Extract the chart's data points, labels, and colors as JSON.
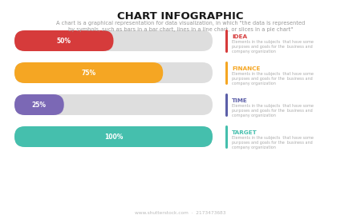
{
  "title": "CHART INFOGRAPHIC",
  "subtitle": "A chart is a graphical representation for data visualization, in which \"the data is represented\nby symbols, such as bars in a bar chart, lines in a line chart, or slices in a pie chart\"",
  "bars": [
    {
      "label": "50%",
      "value": 50,
      "color": "#d63b3b",
      "bg_color": "#dedede"
    },
    {
      "label": "75%",
      "value": 75,
      "color": "#f5a623",
      "bg_color": "#dedede"
    },
    {
      "label": "25%",
      "value": 25,
      "color": "#7b68b5",
      "bg_color": "#dedede"
    },
    {
      "label": "100%",
      "value": 100,
      "color": "#45bfad",
      "bg_color": "#dedede"
    }
  ],
  "items": [
    {
      "title": "IDEA",
      "title_color": "#d63b3b",
      "line_color": "#d63b3b",
      "desc": "Elements in the subjects  that have some\npurposes and goals for the  business and\ncompany organization"
    },
    {
      "title": "FINANCE",
      "title_color": "#f5a623",
      "line_color": "#f5a623",
      "desc": "Elements in the subjects  that have some\npurposes and goals for the  business and\ncompany organization"
    },
    {
      "title": "TIME",
      "title_color": "#5c5fa8",
      "line_color": "#5c5fa8",
      "desc": "Elements in the subjects  that have some\npurposes and goals for the  business and\ncompany organization"
    },
    {
      "title": "TARGET",
      "title_color": "#45bfad",
      "line_color": "#45bfad",
      "desc": "Elements in the subjects  that have some\npurposes and goals for the  business and\ncompany organization"
    }
  ],
  "bg_color": "#ffffff",
  "title_fontsize": 9.5,
  "subtitle_fontsize": 4.8,
  "bar_label_fontsize": 5.5,
  "item_title_fontsize": 5.2,
  "item_desc_fontsize": 3.5,
  "watermark": "www.shutterstock.com  ·  2173473683"
}
